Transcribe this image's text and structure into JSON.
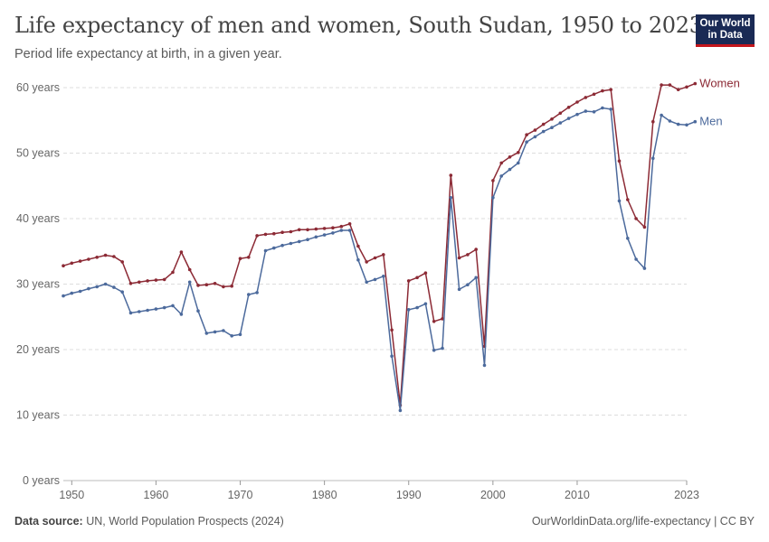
{
  "header": {
    "title": "Life expectancy of men and women, South Sudan, 1950 to 2023",
    "subtitle": "Period life expectancy at birth, in a given year."
  },
  "logo": {
    "line1": "Our World",
    "line2": "in Data",
    "bg": "#1a2a55",
    "accent": "#c4161c"
  },
  "footer": {
    "source_label": "Data source:",
    "source_text": "UN, World Population Prospects (2024)",
    "url_text": "OurWorldinData.org/life-expectancy | CC BY"
  },
  "chart_data": {
    "type": "line",
    "title": "Life expectancy of men and women, South Sudan, 1950 to 2023",
    "xlabel": "",
    "ylabel": "",
    "xlim": [
      1949,
      2023
    ],
    "ylim": [
      0,
      60
    ],
    "x_ticks": [
      1950,
      1960,
      1970,
      1980,
      1990,
      2000,
      2010,
      2023
    ],
    "y_ticks": [
      0,
      10,
      20,
      30,
      40,
      50,
      60
    ],
    "y_tick_labels": [
      "0 years",
      "10 years",
      "20 years",
      "30 years",
      "40 years",
      "50 years",
      "60 years"
    ],
    "x_start": 1949,
    "series": [
      {
        "name": "Women",
        "color": "#8c2a35",
        "values": [
          32.8,
          33.2,
          33.5,
          33.8,
          34.1,
          34.4,
          34.2,
          33.4,
          30.1,
          30.3,
          30.5,
          30.6,
          30.7,
          31.8,
          34.9,
          32.2,
          29.8,
          29.9,
          30.1,
          29.6,
          29.7,
          33.9,
          34.1,
          37.4,
          37.6,
          37.7,
          37.9,
          38.0,
          38.3,
          38.3,
          38.4,
          38.5,
          38.6,
          38.8,
          39.2,
          35.8,
          33.4,
          34.0,
          34.5,
          23.0,
          11.5,
          30.5,
          31.0,
          31.7,
          24.3,
          24.7,
          46.6,
          34.0,
          34.5,
          35.3,
          20.5,
          45.8,
          48.5,
          49.4,
          50.1,
          52.8,
          53.5,
          54.4,
          55.2,
          56.1,
          57.0,
          57.8,
          58.5,
          59.0,
          59.5,
          59.7,
          48.8,
          42.9,
          40.0,
          38.7,
          54.8,
          60.4,
          60.4,
          59.7,
          60.1,
          60.6
        ]
      },
      {
        "name": "Men",
        "color": "#4c6a9c",
        "values": [
          28.2,
          28.6,
          28.9,
          29.3,
          29.6,
          30.0,
          29.5,
          28.8,
          25.6,
          25.8,
          26.0,
          26.2,
          26.4,
          26.7,
          25.4,
          30.3,
          25.9,
          22.5,
          22.7,
          22.9,
          22.1,
          22.3,
          28.4,
          28.7,
          35.1,
          35.5,
          35.9,
          36.2,
          36.5,
          36.8,
          37.2,
          37.5,
          37.8,
          38.2,
          38.2,
          33.7,
          30.3,
          30.7,
          31.2,
          19.0,
          10.7,
          26.1,
          26.4,
          27.0,
          19.9,
          20.2,
          43.2,
          29.2,
          29.9,
          31.0,
          17.6,
          43.2,
          46.5,
          47.5,
          48.5,
          51.7,
          52.5,
          53.3,
          53.9,
          54.6,
          55.3,
          55.9,
          56.4,
          56.3,
          56.9,
          56.7,
          42.7,
          37.0,
          33.8,
          32.4,
          49.2,
          55.8,
          54.9,
          54.4,
          54.3,
          54.8
        ]
      }
    ]
  }
}
